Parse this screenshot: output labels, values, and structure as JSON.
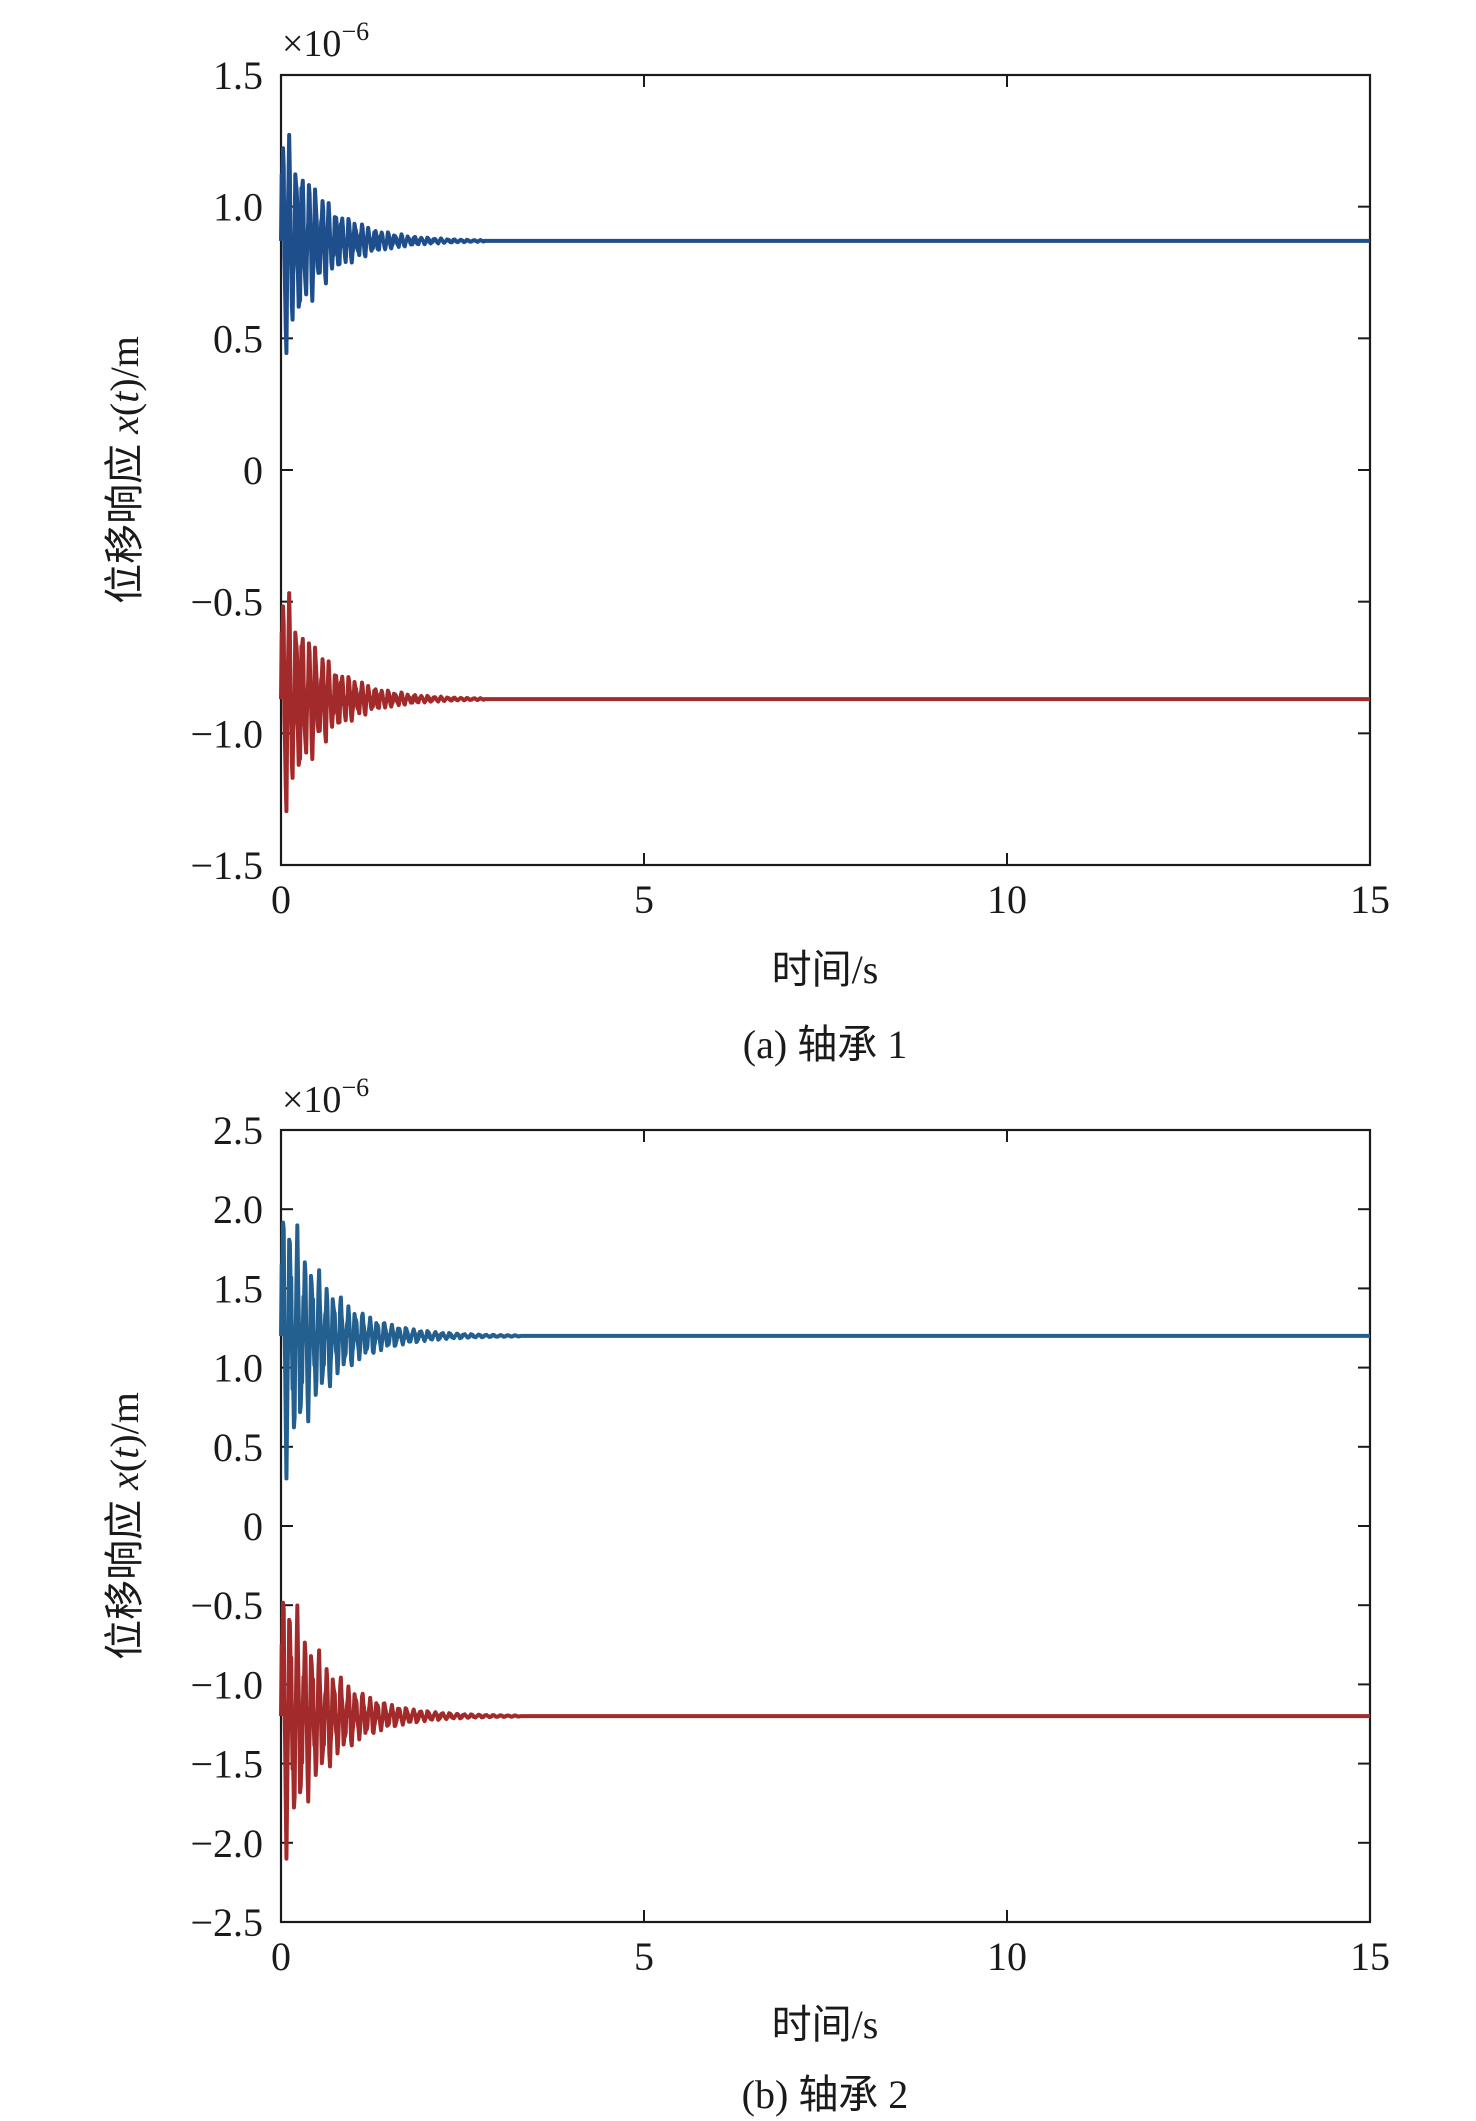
{
  "chart_data": [
    {
      "type": "line",
      "caption": "(a) 轴承 1",
      "xlabel": "时间/s",
      "ylabel_prefix": "位移响应 ",
      "ylabel_x": "x",
      "ylabel_open": "(",
      "ylabel_t": "t",
      "ylabel_close": ")/m",
      "multiplier_base": "×10",
      "multiplier_exp": "−6",
      "xlim": [
        0,
        15
      ],
      "ylim": [
        -1.5,
        1.5
      ],
      "x_ticks": [
        0,
        5,
        10,
        15
      ],
      "x_tick_labels": [
        "0",
        "5",
        "10",
        "15"
      ],
      "y_ticks": [
        1.5,
        1.0,
        0.5,
        0,
        -0.5,
        -1.0,
        -1.5
      ],
      "y_tick_labels": [
        "1.5",
        "1.0",
        "0.5",
        "0",
        "−0.5",
        "−1.0",
        "−1.5"
      ],
      "grid": false,
      "series": [
        {
          "color": "#1f4e8c",
          "steady_value": 0.87,
          "initial_amplitude": 0.52,
          "decay_time_s": 0.55,
          "oscillation_freq_hz": 11,
          "settle_time_s": 2.8
        },
        {
          "color": "#a32a2a",
          "steady_value": -0.87,
          "initial_amplitude": 0.52,
          "decay_time_s": 0.55,
          "oscillation_freq_hz": 11,
          "settle_time_s": 2.8
        }
      ]
    },
    {
      "type": "line",
      "caption": "(b) 轴承 2",
      "xlabel": "时间/s",
      "ylabel_prefix": "位移响应 ",
      "ylabel_x": "x",
      "ylabel_open": "(",
      "ylabel_t": "t",
      "ylabel_close": ")/m",
      "multiplier_base": "×10",
      "multiplier_exp": "−6",
      "xlim": [
        0,
        15
      ],
      "ylim": [
        -2.5,
        2.5
      ],
      "x_ticks": [
        0,
        5,
        10,
        15
      ],
      "x_tick_labels": [
        "0",
        "5",
        "10",
        "15"
      ],
      "y_ticks": [
        2.5,
        2.0,
        1.5,
        1.0,
        0.5,
        0,
        -0.5,
        -1.0,
        -1.5,
        -2.0,
        -2.5
      ],
      "y_tick_labels": [
        "2.5",
        "2.0",
        "1.5",
        "1.0",
        "0.5",
        "0",
        "−0.5",
        "−1.0",
        "−1.5",
        "−2.0",
        "−2.5"
      ],
      "grid": false,
      "series": [
        {
          "color": "#23608f",
          "steady_value": 1.2,
          "initial_amplitude": 1.0,
          "decay_time_s": 0.6,
          "oscillation_freq_hz": 10,
          "settle_time_s": 3.3
        },
        {
          "color": "#a32a2a",
          "steady_value": -1.2,
          "initial_amplitude": 1.0,
          "decay_time_s": 0.6,
          "oscillation_freq_hz": 10,
          "settle_time_s": 3.3
        }
      ]
    }
  ]
}
